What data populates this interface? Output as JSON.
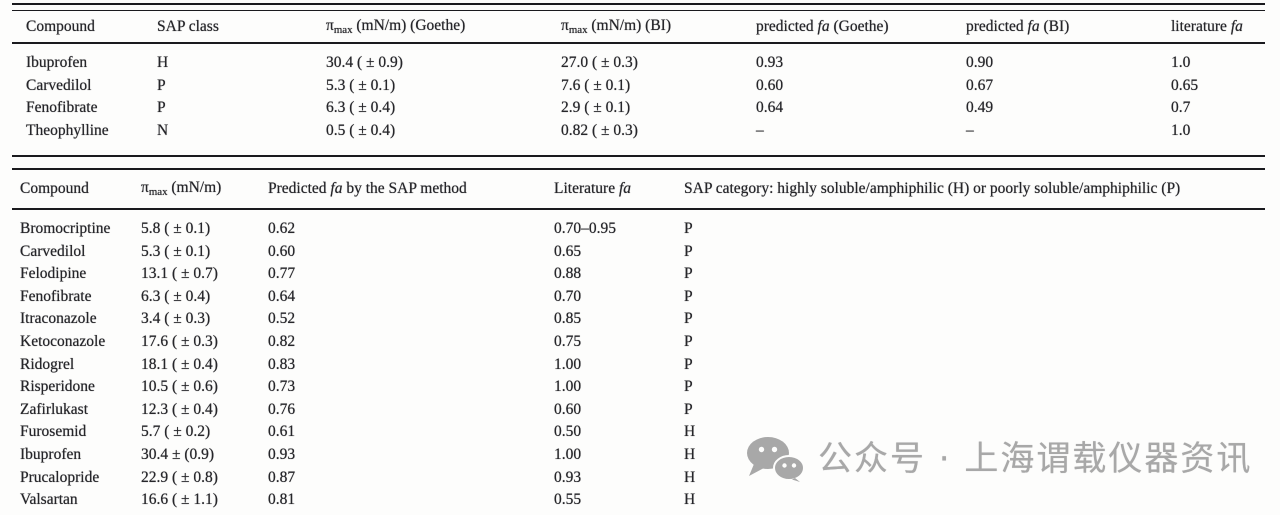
{
  "page": {
    "ink_color": "#26262a",
    "watermark_color": "#a8a8a8",
    "background_color": "#fdfdfc"
  },
  "table1": {
    "columns": [
      {
        "name": "compound",
        "segments": [
          {
            "t": "Compound"
          }
        ]
      },
      {
        "name": "sap-class",
        "segments": [
          {
            "t": "SAP class"
          }
        ]
      },
      {
        "name": "pimax-goethe",
        "segments": [
          {
            "t": "π"
          },
          {
            "t": "max",
            "style": "sub"
          },
          {
            "t": " (mN/m) (Goethe)"
          }
        ]
      },
      {
        "name": "pimax-bi",
        "segments": [
          {
            "t": "π"
          },
          {
            "t": "max",
            "style": "sub"
          },
          {
            "t": " (mN/m) (BI)"
          }
        ]
      },
      {
        "name": "predicted-fa-goethe",
        "segments": [
          {
            "t": "predicted "
          },
          {
            "t": "fa",
            "style": "i"
          },
          {
            "t": " (Goethe)"
          }
        ]
      },
      {
        "name": "predicted-fa-bi",
        "segments": [
          {
            "t": "predicted "
          },
          {
            "t": "fa",
            "style": "i"
          },
          {
            "t": " (BI)"
          }
        ]
      },
      {
        "name": "literature-fa",
        "segments": [
          {
            "t": "literature "
          },
          {
            "t": "fa",
            "style": "i"
          }
        ]
      }
    ],
    "rows": [
      [
        "Ibuprofen",
        "H",
        "30.4 ( ± 0.9)",
        "27.0 ( ± 0.3)",
        "0.93",
        "0.90",
        "1.0"
      ],
      [
        "Carvedilol",
        "P",
        "5.3 ( ± 0.1)",
        "7.6 ( ± 0.1)",
        "0.60",
        "0.67",
        "0.65"
      ],
      [
        "Fenofibrate",
        "P",
        "6.3 ( ± 0.4)",
        "2.9 ( ± 0.1)",
        "0.64",
        "0.49",
        "0.7"
      ],
      [
        "Theophylline",
        "N",
        "0.5 ( ± 0.4)",
        "0.82 ( ± 0.3)",
        "–",
        "–",
        "1.0"
      ]
    ]
  },
  "table2": {
    "columns": [
      {
        "name": "compound",
        "segments": [
          {
            "t": "Compound"
          }
        ]
      },
      {
        "name": "pimax",
        "segments": [
          {
            "t": "π"
          },
          {
            "t": "max",
            "style": "sub"
          },
          {
            "t": " (mN/m)"
          }
        ]
      },
      {
        "name": "predicted-fa-sap",
        "segments": [
          {
            "t": "Predicted "
          },
          {
            "t": "fa",
            "style": "i"
          },
          {
            "t": " by the SAP method"
          }
        ]
      },
      {
        "name": "literature-fa",
        "segments": [
          {
            "t": "Literature "
          },
          {
            "t": "fa",
            "style": "i"
          }
        ]
      },
      {
        "name": "sap-category",
        "segments": [
          {
            "t": "SAP category: highly soluble/amphiphilic (H) or poorly soluble/amphiphilic (P)"
          }
        ]
      }
    ],
    "rows": [
      [
        "Bromocriptine",
        "5.8 ( ± 0.1)",
        "0.62",
        "0.70–0.95",
        "P"
      ],
      [
        "Carvedilol",
        "5.3 ( ± 0.1)",
        "0.60",
        "0.65",
        "P"
      ],
      [
        "Felodipine",
        "13.1 ( ± 0.7)",
        "0.77",
        "0.88",
        "P"
      ],
      [
        "Fenofibrate",
        "6.3 ( ± 0.4)",
        "0.64",
        "0.70",
        "P"
      ],
      [
        "Itraconazole",
        "3.4 ( ± 0.3)",
        "0.52",
        "0.85",
        "P"
      ],
      [
        "Ketoconazole",
        "17.6 ( ± 0.3)",
        "0.82",
        "0.75",
        "P"
      ],
      [
        "Ridogrel",
        "18.1 ( ± 0.4)",
        "0.83",
        "1.00",
        "P"
      ],
      [
        "Risperidone",
        "10.5 ( ± 0.6)",
        "0.73",
        "1.00",
        "P"
      ],
      [
        "Zafirlukast",
        "12.3 ( ± 0.4)",
        "0.76",
        "0.60",
        "P"
      ],
      [
        "Furosemid",
        "5.7 ( ± 0.2)",
        "0.61",
        "0.50",
        "H"
      ],
      [
        "Ibuprofen",
        "30.4 ± (0.9)",
        "0.93",
        "1.00",
        "H"
      ],
      [
        "Prucalopride",
        "22.9 ( ± 0.8)",
        "0.87",
        "0.93",
        "H"
      ],
      [
        "Valsartan",
        "16.6 ( ± 1.1)",
        "0.81",
        "0.55",
        "H"
      ]
    ]
  },
  "watermark": {
    "icon": "wechat-icon",
    "text": "公众号 · 上海谓载仪器资讯"
  }
}
